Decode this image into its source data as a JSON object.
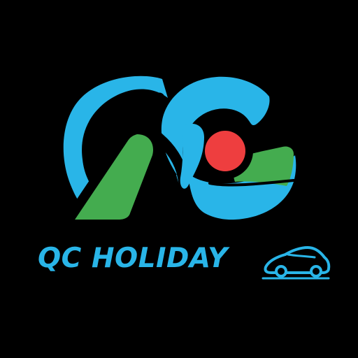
{
  "brand": {
    "name": "QC HOLIDAY",
    "monogram": "QC"
  },
  "colors": {
    "background": "#000000",
    "blue": "#29b5e8",
    "green": "#44ac4f",
    "red": "#ee3e3f"
  },
  "icons": {
    "logo": "qc-monogram-logo",
    "car": "car-icon"
  }
}
